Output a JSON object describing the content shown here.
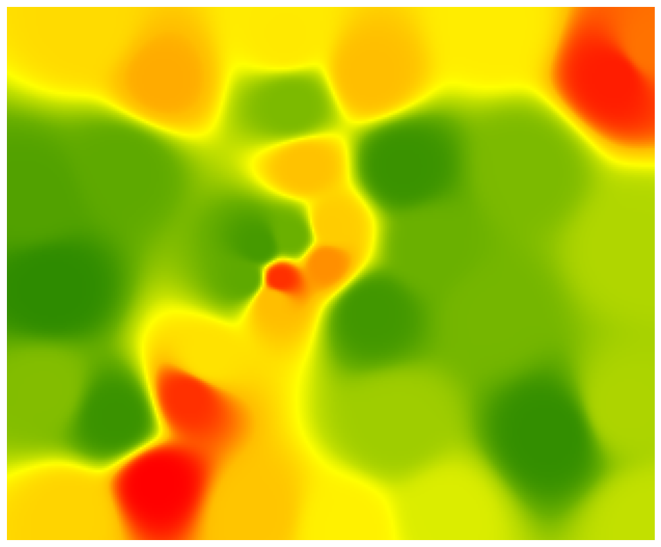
{
  "chart_data": {
    "type": "heatmap",
    "title": "",
    "xlabel": "",
    "ylabel": "",
    "axes_visible": false,
    "colorbar": false,
    "legend": "none",
    "colormap": {
      "name": "green-yellow-red",
      "stops": [
        {
          "value": 0.0,
          "color": "#2e8b00"
        },
        {
          "value": 0.25,
          "color": "#6ab000"
        },
        {
          "value": 0.5,
          "color": "#c2e000"
        },
        {
          "value": 0.62,
          "color": "#ffff00"
        },
        {
          "value": 0.8,
          "color": "#ffbe00"
        },
        {
          "value": 1.0,
          "color": "#ff0000"
        }
      ]
    },
    "value_range": [
      0,
      1
    ],
    "interpolation": "inverse-distance",
    "domain": {
      "x": [
        0,
        1
      ],
      "y": [
        0,
        1
      ]
    },
    "samples": [
      {
        "x": 0.12,
        "y": 0.96,
        "value": 0.72
      },
      {
        "x": 0.24,
        "y": 0.86,
        "value": 0.82
      },
      {
        "x": 0.43,
        "y": 0.94,
        "value": 0.68
      },
      {
        "x": 0.56,
        "y": 0.87,
        "value": 0.8
      },
      {
        "x": 0.75,
        "y": 0.96,
        "value": 0.67
      },
      {
        "x": 0.94,
        "y": 0.87,
        "value": 0.97
      },
      {
        "x": 0.99,
        "y": 0.92,
        "value": 0.88
      },
      {
        "x": 0.44,
        "y": 0.81,
        "value": 0.3
      },
      {
        "x": 0.46,
        "y": 0.7,
        "value": 0.79
      },
      {
        "x": 0.5,
        "y": 0.59,
        "value": 0.76
      },
      {
        "x": 0.49,
        "y": 0.52,
        "value": 0.85
      },
      {
        "x": 0.41,
        "y": 0.45,
        "value": 0.8
      },
      {
        "x": 0.42,
        "y": 0.49,
        "value": 0.95
      },
      {
        "x": 0.39,
        "y": 0.55,
        "value": 0.1
      },
      {
        "x": 0.37,
        "y": 0.49,
        "value": 0.2
      },
      {
        "x": 0.44,
        "y": 0.57,
        "value": 0.25
      },
      {
        "x": 0.31,
        "y": 0.34,
        "value": 0.7
      },
      {
        "x": 0.28,
        "y": 0.27,
        "value": 0.95
      },
      {
        "x": 0.23,
        "y": 0.11,
        "value": 1.0
      },
      {
        "x": 0.38,
        "y": 0.05,
        "value": 0.78
      },
      {
        "x": 0.52,
        "y": 0.02,
        "value": 0.66
      },
      {
        "x": 0.1,
        "y": 0.05,
        "value": 0.74
      },
      {
        "x": 0.07,
        "y": 0.47,
        "value": 0.0
      },
      {
        "x": 0.17,
        "y": 0.23,
        "value": 0.05
      },
      {
        "x": 0.18,
        "y": 0.7,
        "value": 0.2
      },
      {
        "x": 0.04,
        "y": 0.64,
        "value": 0.15
      },
      {
        "x": 0.06,
        "y": 0.28,
        "value": 0.32
      },
      {
        "x": 0.61,
        "y": 0.7,
        "value": 0.05
      },
      {
        "x": 0.56,
        "y": 0.43,
        "value": 0.08
      },
      {
        "x": 0.84,
        "y": 0.2,
        "value": 0.02
      },
      {
        "x": 0.75,
        "y": 0.42,
        "value": 0.28
      },
      {
        "x": 0.8,
        "y": 0.7,
        "value": 0.3
      },
      {
        "x": 0.97,
        "y": 0.55,
        "value": 0.45
      },
      {
        "x": 0.95,
        "y": 0.25,
        "value": 0.44
      },
      {
        "x": 0.99,
        "y": 0.03,
        "value": 0.5
      },
      {
        "x": 0.68,
        "y": 0.05,
        "value": 0.55
      },
      {
        "x": 0.6,
        "y": 0.22,
        "value": 0.4
      },
      {
        "x": 0.65,
        "y": 0.55,
        "value": 0.25
      }
    ]
  }
}
